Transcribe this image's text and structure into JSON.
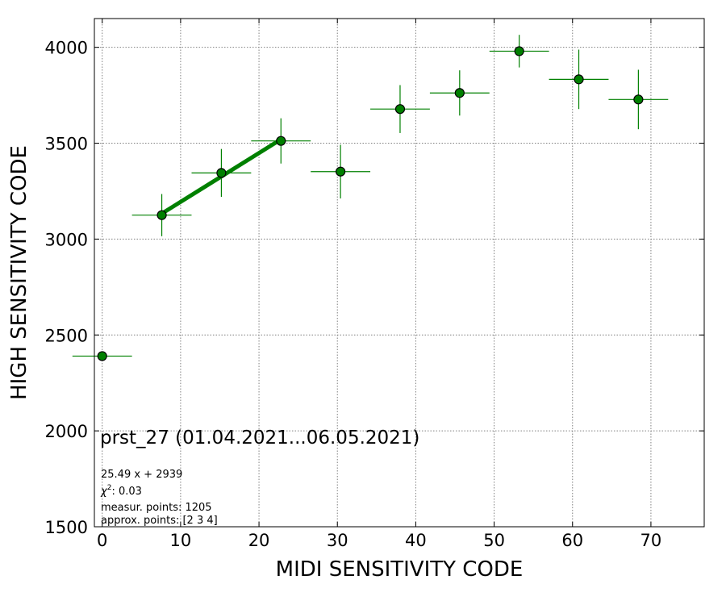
{
  "chart_data": {
    "type": "scatter",
    "title": "",
    "xlabel": "MIDI SENSITIVITY CODE",
    "ylabel": "HIGH SENSITIVITY CODE",
    "xlim": [
      -1,
      76.8
    ],
    "ylim": [
      1500,
      4150
    ],
    "xticks": [
      0,
      10,
      20,
      30,
      40,
      50,
      60,
      70
    ],
    "yticks": [
      1500,
      2000,
      2500,
      3000,
      3500,
      4000
    ],
    "grid": true,
    "series": [
      {
        "x": [
          0.0,
          7.6,
          15.2,
          22.8,
          30.4,
          38.0,
          45.6,
          53.2,
          60.8,
          68.4
        ],
        "y": [
          2390,
          3125,
          3345,
          3512,
          3352,
          3678,
          3762,
          3980,
          3833,
          3728
        ],
        "xerr": [
          3.8,
          3.8,
          3.8,
          3.8,
          3.8,
          3.8,
          3.8,
          3.8,
          3.8,
          3.8
        ],
        "yerr": [
          0,
          110,
          125,
          118,
          140,
          125,
          118,
          85,
          155,
          155
        ]
      }
    ],
    "fit_line": {
      "x": [
        7.6,
        22.8
      ],
      "y": [
        3133,
        3520
      ]
    },
    "colors": {
      "marker": "#008000",
      "marker_edge": "#000000",
      "errorbar": "#008000",
      "fit": "#008000",
      "grid": "#808080"
    },
    "annotations": {
      "main": "prst_27 (01.04.2021...06.05.2021)",
      "fit_equation": "25.49 x + 2939",
      "chi_symbol": "χ",
      "chi_exp": "2",
      "chi_value": ": 0.03",
      "measur_points": "measur. points: 1205",
      "approx_points": "approx. points: [2 3 4]"
    }
  }
}
